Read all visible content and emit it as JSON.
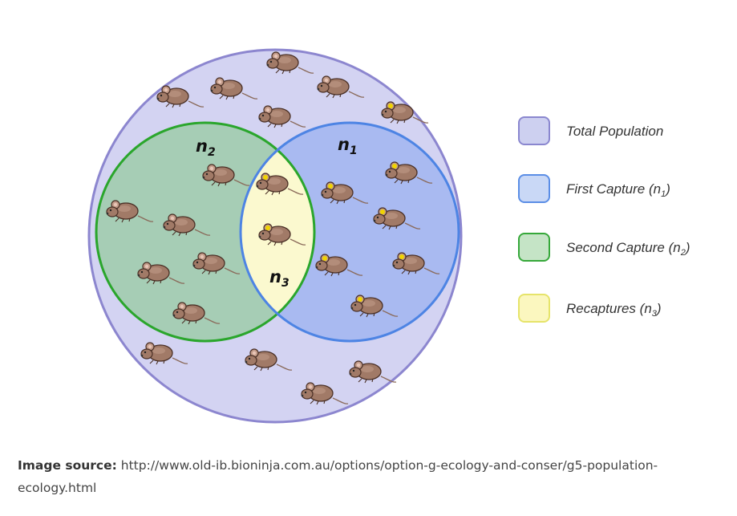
{
  "labels": {
    "n2": {
      "base": "n",
      "sub": "2"
    },
    "n1": {
      "base": "n",
      "sub": "1"
    },
    "n3": {
      "base": "n",
      "sub": "3"
    }
  },
  "legend": [
    {
      "key": "total",
      "text": "Total Population",
      "sub": "",
      "suffix": "",
      "fill": "#cdd0f0",
      "stroke": "#8a87cf"
    },
    {
      "key": "first",
      "text": "First Capture (n",
      "sub": "1",
      "suffix": ")",
      "fill": "#c9d8f6",
      "stroke": "#5b8ee6"
    },
    {
      "key": "second",
      "text": "Second Capture (n",
      "sub": "2",
      "suffix": ")",
      "fill": "#c5e4c6",
      "stroke": "#36a83a"
    },
    {
      "key": "recap",
      "text": "Recaptures (n",
      "sub": "3",
      "suffix": ")",
      "fill": "#fbf7bf",
      "stroke": "#e6e46a"
    }
  ],
  "colors": {
    "total_fill": "#d3d3f2",
    "total_stroke": "#8c86cf",
    "first_fill": "#a9baf1",
    "first_stroke": "#4d84e4",
    "second_fill": "#a6cdb5",
    "second_stroke": "#2aa62c",
    "overlap_fill": "#fbf9cf",
    "mouse_body": "#a17a67",
    "mouse_stroke": "#4a3026",
    "mark": "#f0d400"
  },
  "mouse_icon": "mouse-icon",
  "source": {
    "label": "Image source:",
    "url": "http://www.old-ib.bioninja.com.au/options/option-g-ecology-and-conser/g5-population-ecology.html"
  }
}
